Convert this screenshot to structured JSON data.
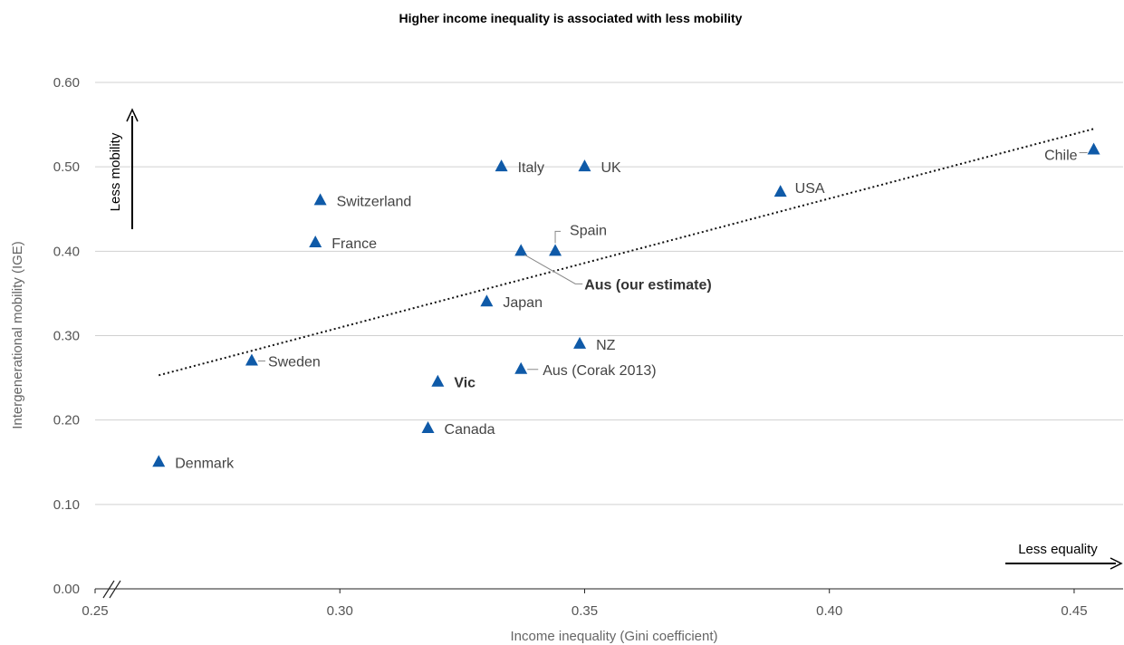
{
  "chart_data": {
    "type": "scatter",
    "title": "Higher income inequality is associated with less mobility",
    "xlabel": "Income inequality (Gini coefficient)",
    "ylabel": "Intergenerational mobility (IGE)",
    "xlim": [
      0.25,
      0.46
    ],
    "ylim": [
      0.0,
      0.6
    ],
    "x_ticks": [
      "0.25",
      "0.30",
      "0.35",
      "0.40",
      "0.45"
    ],
    "y_ticks": [
      "0.00",
      "0.10",
      "0.20",
      "0.30",
      "0.40",
      "0.50",
      "0.60"
    ],
    "grid": "horizontal",
    "marker_color": "#0f5aa8",
    "points": [
      {
        "label": "Denmark",
        "x": 0.263,
        "y": 0.15,
        "bold": false
      },
      {
        "label": "Sweden",
        "x": 0.282,
        "y": 0.27,
        "bold": false
      },
      {
        "label": "France",
        "x": 0.295,
        "y": 0.41,
        "bold": false
      },
      {
        "label": "Switzerland",
        "x": 0.296,
        "y": 0.46,
        "bold": false
      },
      {
        "label": "Canada",
        "x": 0.318,
        "y": 0.19,
        "bold": false
      },
      {
        "label": "Vic",
        "x": 0.32,
        "y": 0.245,
        "bold": true
      },
      {
        "label": "Japan",
        "x": 0.33,
        "y": 0.34,
        "bold": false
      },
      {
        "label": "Italy",
        "x": 0.333,
        "y": 0.5,
        "bold": false
      },
      {
        "label": "Aus (our estimate)",
        "x": 0.337,
        "y": 0.4,
        "bold": true
      },
      {
        "label": "Aus (Corak 2013)",
        "x": 0.337,
        "y": 0.26,
        "bold": false
      },
      {
        "label": "Spain",
        "x": 0.344,
        "y": 0.4,
        "bold": false
      },
      {
        "label": "NZ",
        "x": 0.349,
        "y": 0.29,
        "bold": false
      },
      {
        "label": "UK",
        "x": 0.35,
        "y": 0.5,
        "bold": false
      },
      {
        "label": "USA",
        "x": 0.39,
        "y": 0.47,
        "bold": false
      },
      {
        "label": "Chile",
        "x": 0.454,
        "y": 0.52,
        "bold": false
      }
    ],
    "trendline": {
      "x": [
        0.263,
        0.454
      ],
      "y": [
        0.253,
        0.545
      ],
      "style": "dotted"
    },
    "annotations": {
      "y_arrow": "Less mobility",
      "x_arrow": "Less equality"
    }
  }
}
